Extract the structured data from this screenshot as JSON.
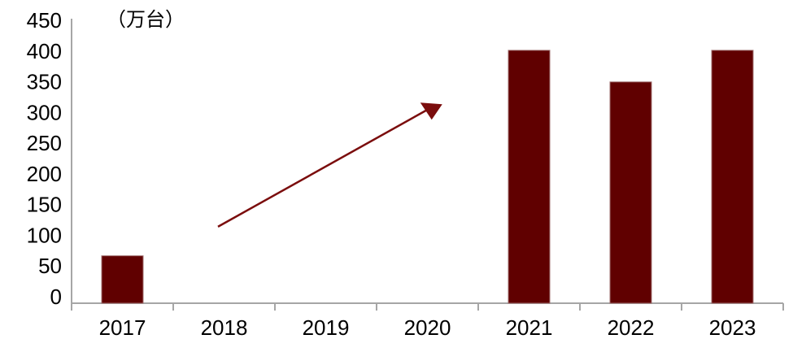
{
  "chart_data": {
    "type": "bar",
    "title": "",
    "unit_label": "（万台）",
    "categories": [
      "2017",
      "2018",
      "2019",
      "2020",
      "2021",
      "2022",
      "2023"
    ],
    "values": [
      75,
      null,
      null,
      null,
      400,
      350,
      400
    ],
    "xlabel": "",
    "ylabel": "",
    "ylim": [
      0,
      450
    ],
    "yticks": [
      0,
      50,
      100,
      150,
      200,
      250,
      300,
      350,
      400,
      450
    ],
    "grid": false,
    "legend": "none",
    "colors": {
      "bar": "#600000",
      "bar_edge": "#a07070",
      "axis": "#a6a6a6",
      "text": "#000000",
      "arrow": "#7b0d0d",
      "background": "#ffffff"
    },
    "annotation": {
      "type": "arrow",
      "description": "upward trend arrow spanning the empty 2018-2020 bars",
      "from": {
        "category_pos": 0.94,
        "value": 121
      },
      "to": {
        "category_pos": 3.01,
        "value": 307
      }
    }
  }
}
